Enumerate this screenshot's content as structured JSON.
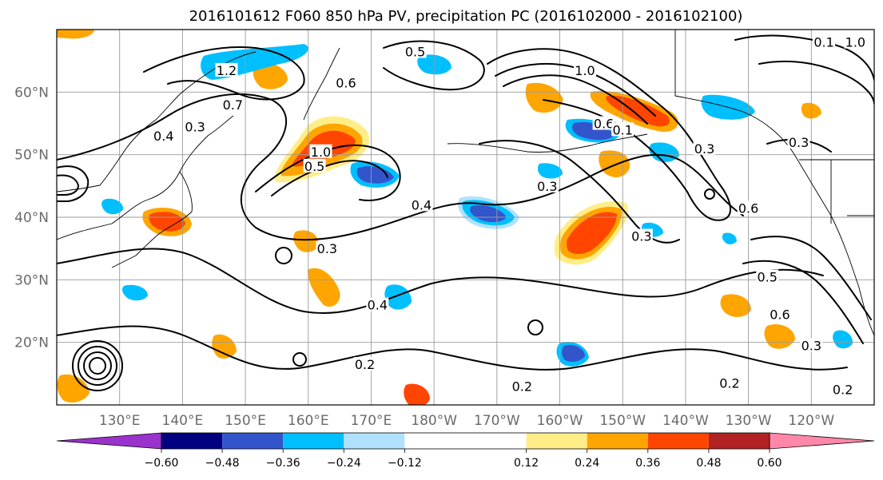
{
  "title": "2016101612 F060 850 hPa PV, precipitation PC (2016102000 - 2016102100)",
  "map": {
    "projection": "PlateCarree",
    "lon_range": [
      120,
      250
    ],
    "lat_range": [
      10,
      70
    ],
    "grid": true,
    "lon_ticks": [
      {
        "lon": 130,
        "label": "130°E"
      },
      {
        "lon": 140,
        "label": "140°E"
      },
      {
        "lon": 150,
        "label": "150°E"
      },
      {
        "lon": 160,
        "label": "160°E"
      },
      {
        "lon": 170,
        "label": "170°E"
      },
      {
        "lon": 180,
        "label": "180°W"
      },
      {
        "lon": 190,
        "label": "170°W"
      },
      {
        "lon": 200,
        "label": "160°W"
      },
      {
        "lon": 210,
        "label": "150°W"
      },
      {
        "lon": 220,
        "label": "140°W"
      },
      {
        "lon": 230,
        "label": "130°W"
      },
      {
        "lon": 240,
        "label": "120°W"
      }
    ],
    "lat_ticks": [
      {
        "lat": 20,
        "label": "20°N"
      },
      {
        "lat": 30,
        "label": "30°N"
      },
      {
        "lat": 40,
        "label": "40°N"
      },
      {
        "lat": 50,
        "label": "50°N"
      },
      {
        "lat": 60,
        "label": "60°N"
      }
    ],
    "contour_labels": [
      {
        "lon": 147,
        "lat": 63.5,
        "text": "1.2"
      },
      {
        "lon": 148,
        "lat": 58,
        "text": "0.7"
      },
      {
        "lon": 142,
        "lat": 54.5,
        "text": "0.3"
      },
      {
        "lon": 137,
        "lat": 53,
        "text": "0.4"
      },
      {
        "lon": 161,
        "lat": 48.2,
        "text": "0.5"
      },
      {
        "lon": 162,
        "lat": 50.5,
        "text": "1.0"
      },
      {
        "lon": 178,
        "lat": 42,
        "text": "0.4"
      },
      {
        "lon": 166,
        "lat": 61.5,
        "text": "0.6"
      },
      {
        "lon": 177,
        "lat": 66.5,
        "text": "0.5"
      },
      {
        "lon": 204,
        "lat": 63.5,
        "text": "1.0"
      },
      {
        "lon": 207,
        "lat": 55,
        "text": "0.6"
      },
      {
        "lon": 210,
        "lat": 54,
        "text": "0.1"
      },
      {
        "lon": 198,
        "lat": 45,
        "text": "0.3"
      },
      {
        "lon": 213,
        "lat": 37,
        "text": "0.3"
      },
      {
        "lon": 223,
        "lat": 51,
        "text": "0.3"
      },
      {
        "lon": 230,
        "lat": 41.5,
        "text": "0.6"
      },
      {
        "lon": 238,
        "lat": 52,
        "text": "0.3"
      },
      {
        "lon": 233,
        "lat": 30.5,
        "text": "0.5"
      },
      {
        "lon": 235,
        "lat": 24.5,
        "text": "0.6"
      },
      {
        "lon": 240,
        "lat": 19.5,
        "text": "0.3"
      },
      {
        "lon": 227,
        "lat": 13.5,
        "text": "0.2"
      },
      {
        "lon": 245,
        "lat": 12.5,
        "text": "0.2"
      },
      {
        "lon": 194,
        "lat": 13,
        "text": "0.2"
      },
      {
        "lon": 169,
        "lat": 16.5,
        "text": "0.2"
      },
      {
        "lon": 171,
        "lat": 26,
        "text": "0.4"
      },
      {
        "lon": 163,
        "lat": 35,
        "text": "0.3"
      },
      {
        "lon": 242,
        "lat": 68,
        "text": "0.1"
      },
      {
        "lon": 247,
        "lat": 68,
        "text": "1.0"
      }
    ]
  },
  "colorbar": {
    "levels": [
      -0.72,
      -0.6,
      -0.48,
      -0.36,
      -0.24,
      -0.12,
      0.12,
      0.24,
      0.36,
      0.48,
      0.6,
      0.72
    ],
    "colors": [
      "#9933cc",
      "#000080",
      "#3355cc",
      "#00bfff",
      "#b0e2ff",
      "#ffffff",
      "#ffee88",
      "#ffa500",
      "#ff4500",
      "#b22222",
      "#ff88aa"
    ],
    "extend_colors": [
      "#9933cc",
      "#ff88aa"
    ],
    "tick_labels": [
      "−0.60",
      "−0.48",
      "−0.36",
      "−0.24",
      "−0.12",
      "0.12",
      "0.24",
      "0.36",
      "0.48",
      "0.60"
    ]
  }
}
